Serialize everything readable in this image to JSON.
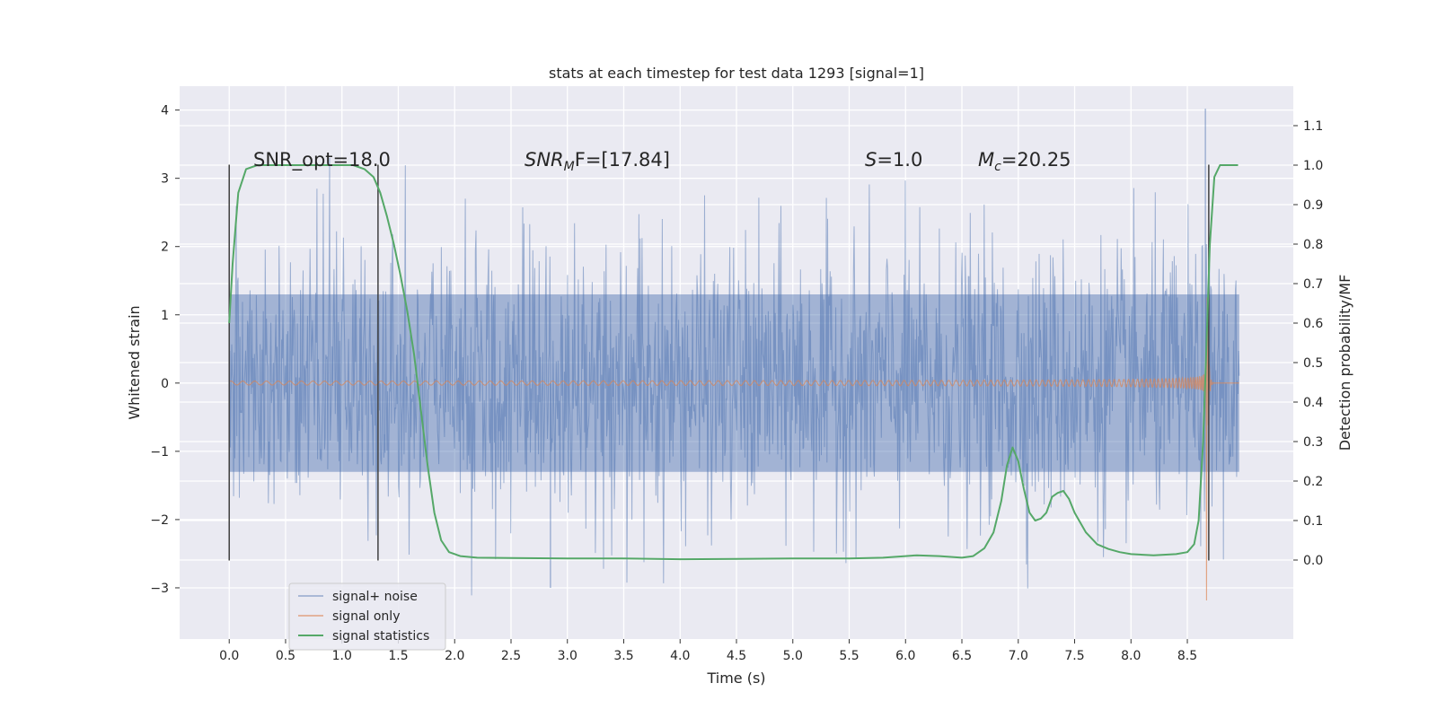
{
  "chart_data": {
    "type": "line",
    "title": "stats at each timestep for test data 1293 [signal=1]",
    "xlabel": "Time (s)",
    "ylabel_left": "Whitened strain",
    "ylabel_right": "Detection probability/MF",
    "xlim": [
      -0.44,
      9.44
    ],
    "ylim_left": [
      -3.75,
      4.35
    ],
    "ylim_right": [
      -0.2,
      1.2
    ],
    "x_ticks": [
      0.0,
      0.5,
      1.0,
      1.5,
      2.0,
      2.5,
      3.0,
      3.5,
      4.0,
      4.5,
      5.0,
      5.5,
      6.0,
      6.5,
      7.0,
      7.5,
      8.0,
      8.5
    ],
    "x_tick_labels": [
      "0.0",
      "0.5",
      "1.0",
      "1.5",
      "2.0",
      "2.5",
      "3.0",
      "3.5",
      "4.0",
      "4.5",
      "5.0",
      "5.5",
      "6.0",
      "6.5",
      "7.0",
      "7.5",
      "8.0",
      "8.5"
    ],
    "y_left_ticks": [
      -3,
      -2,
      -1,
      0,
      1,
      2,
      3,
      4
    ],
    "y_left_tick_labels": [
      "−3",
      "−2",
      "−1",
      "0",
      "1",
      "2",
      "3",
      "4"
    ],
    "y_right_ticks": [
      0.0,
      0.1,
      0.2,
      0.3,
      0.4,
      0.5,
      0.6,
      0.7,
      0.8,
      0.9,
      1.0,
      1.1
    ],
    "y_right_tick_labels": [
      "0.0",
      "0.1",
      "0.2",
      "0.3",
      "0.4",
      "0.5",
      "0.6",
      "0.7",
      "0.8",
      "0.9",
      "1.0",
      "1.1"
    ],
    "grid": true,
    "legend_position": "lower-left",
    "colors": {
      "noise": "#4c72b0",
      "signal": "#dd8452",
      "stats": "#55a868",
      "vline": "#404040",
      "plot_bg": "#eaeaf2",
      "grid": "#ffffff"
    },
    "series": [
      {
        "name": "signal+ noise",
        "axis": "left",
        "kind": "noise-band",
        "x_range": [
          0.0,
          8.96
        ],
        "typical_amplitude": 1.0,
        "extreme_values": {
          "max": 4.02,
          "min": -3.0
        }
      },
      {
        "name": "signal only",
        "axis": "left",
        "kind": "chirp",
        "x_range": [
          0.0,
          8.96
        ],
        "merger_time": 8.67,
        "amplitude_peak": 3.3
      },
      {
        "name": "signal statistics",
        "axis": "right",
        "kind": "line",
        "x": [
          0.0,
          0.03,
          0.08,
          0.15,
          0.25,
          0.4,
          0.6,
          0.8,
          1.0,
          1.1,
          1.2,
          1.28,
          1.34,
          1.4,
          1.46,
          1.52,
          1.58,
          1.64,
          1.7,
          1.76,
          1.82,
          1.88,
          1.95,
          2.05,
          2.2,
          2.5,
          3.0,
          3.5,
          4.0,
          4.5,
          5.0,
          5.5,
          5.8,
          6.0,
          6.1,
          6.3,
          6.5,
          6.6,
          6.7,
          6.78,
          6.85,
          6.9,
          6.95,
          7.0,
          7.05,
          7.1,
          7.15,
          7.2,
          7.25,
          7.3,
          7.35,
          7.4,
          7.45,
          7.5,
          7.6,
          7.7,
          7.8,
          7.9,
          8.0,
          8.2,
          8.4,
          8.5,
          8.56,
          8.6,
          8.64,
          8.67,
          8.7,
          8.74,
          8.79,
          8.85,
          8.95
        ],
        "values": [
          0.6,
          0.75,
          0.93,
          0.99,
          1.0,
          1.0,
          1.0,
          1.0,
          1.0,
          1.0,
          0.99,
          0.97,
          0.93,
          0.87,
          0.8,
          0.72,
          0.63,
          0.52,
          0.38,
          0.24,
          0.12,
          0.05,
          0.02,
          0.01,
          0.006,
          0.005,
          0.004,
          0.004,
          0.002,
          0.003,
          0.004,
          0.004,
          0.006,
          0.01,
          0.012,
          0.01,
          0.006,
          0.01,
          0.03,
          0.07,
          0.15,
          0.24,
          0.285,
          0.25,
          0.18,
          0.12,
          0.1,
          0.105,
          0.12,
          0.16,
          0.17,
          0.175,
          0.155,
          0.12,
          0.07,
          0.04,
          0.028,
          0.02,
          0.015,
          0.012,
          0.015,
          0.02,
          0.04,
          0.1,
          0.3,
          0.55,
          0.8,
          0.97,
          1.0,
          1.0,
          1.0
        ]
      }
    ],
    "vertical_lines": [
      {
        "x": 0.0,
        "y_range": [
          -2.6,
          3.2
        ]
      },
      {
        "x": 1.32,
        "y_range": [
          -2.6,
          3.2
        ]
      },
      {
        "x": 8.69,
        "y_range": [
          -2.6,
          3.2
        ]
      }
    ],
    "annotations": {
      "snr_opt": "SNR_opt=18.0",
      "snr_mf_main": "SNR",
      "snr_mf_sub": "M",
      "snr_mf_rest": "F=[17.84]",
      "s_italic": "S",
      "s_rest": "=1.0",
      "mc_main": "M",
      "mc_sub": "c",
      "mc_rest": "=20.25"
    },
    "legend": [
      "signal+ noise",
      "signal only",
      "signal statistics"
    ]
  }
}
